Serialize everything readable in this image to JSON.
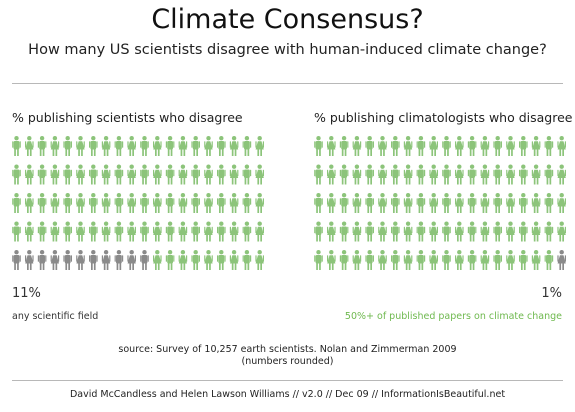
{
  "header": {
    "title": "Climate Consensus?",
    "subtitle": "How many US scientists disagree with human-induced climate change?"
  },
  "colors": {
    "agree": "#8cc47a",
    "disagree": "#8a8a8a",
    "accent_green": "#7dbf5e"
  },
  "chart_data": [
    {
      "type": "pictograph",
      "title": "% publishing scientists who disagree",
      "value_label": "11%",
      "note": "any scientific field",
      "total_icons": 100,
      "grid": {
        "columns": 20,
        "rows": 5
      },
      "series": [
        {
          "name": "",
          "value_pct": 11,
          "icon_count": 11,
          "color": "#8a8a8a"
        },
        {
          "name": "",
          "value_pct": 89,
          "icon_count": 89,
          "color": "#8cc47a"
        }
      ]
    },
    {
      "type": "pictograph",
      "title": "% publishing climatologists who disagree",
      "value_label": "1%",
      "note": "50%+ of published papers on climate change",
      "total_icons": 100,
      "grid": {
        "columns": 20,
        "rows": 5
      },
      "series": [
        {
          "name": "",
          "value_pct": 1,
          "icon_count": 1,
          "color": "#8a8a8a"
        },
        {
          "name": "",
          "value_pct": 99,
          "icon_count": 99,
          "color": "#8cc47a"
        }
      ]
    }
  ],
  "source": {
    "line1": "source: Survey of 10,257 earth scientists. Nolan and Zimmerman 2009",
    "line2": "(numbers rounded)"
  },
  "footer": "David McCandless and Helen Lawson Williams // v2.0 // Dec 09 // InformationIsBeautiful.net"
}
